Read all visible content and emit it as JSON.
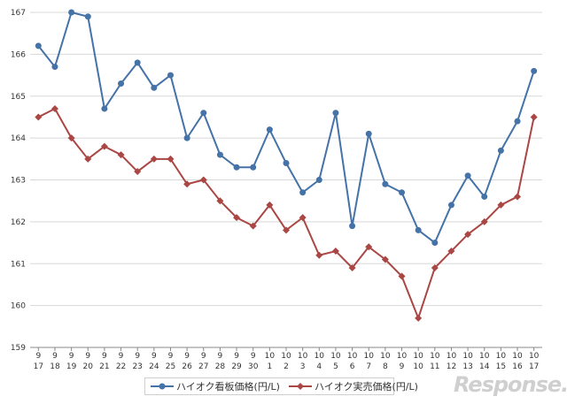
{
  "chart_data": {
    "type": "line",
    "categories": [
      [
        "9",
        "17"
      ],
      [
        "9",
        "18"
      ],
      [
        "9",
        "19"
      ],
      [
        "9",
        "20"
      ],
      [
        "9",
        "21"
      ],
      [
        "9",
        "22"
      ],
      [
        "9",
        "23"
      ],
      [
        "9",
        "24"
      ],
      [
        "9",
        "25"
      ],
      [
        "9",
        "26"
      ],
      [
        "9",
        "27"
      ],
      [
        "9",
        "28"
      ],
      [
        "9",
        "29"
      ],
      [
        "9",
        "30"
      ],
      [
        "10",
        "1"
      ],
      [
        "10",
        "2"
      ],
      [
        "10",
        "3"
      ],
      [
        "10",
        "4"
      ],
      [
        "10",
        "5"
      ],
      [
        "10",
        "6"
      ],
      [
        "10",
        "7"
      ],
      [
        "10",
        "8"
      ],
      [
        "10",
        "9"
      ],
      [
        "10",
        "10"
      ],
      [
        "10",
        "11"
      ],
      [
        "10",
        "12"
      ],
      [
        "10",
        "13"
      ],
      [
        "10",
        "14"
      ],
      [
        "10",
        "15"
      ],
      [
        "10",
        "16"
      ],
      [
        "10",
        "17"
      ]
    ],
    "ylim": [
      159,
      167
    ],
    "yticks": [
      "159",
      "160",
      "161",
      "162",
      "163",
      "164",
      "165",
      "166",
      "167"
    ],
    "grid": true,
    "legend_position": "bottom",
    "series": [
      {
        "name": "ハイオク看板価格(円/L)",
        "color": "#4572A7",
        "marker": "circle",
        "values": [
          166.2,
          165.7,
          167.0,
          166.9,
          164.7,
          165.3,
          165.8,
          165.2,
          165.5,
          164.0,
          164.6,
          163.6,
          163.3,
          163.3,
          164.2,
          163.4,
          162.7,
          163.0,
          164.6,
          161.9,
          164.1,
          162.9,
          162.7,
          161.8,
          161.5,
          162.4,
          163.1,
          162.6,
          163.7,
          164.4,
          165.6
        ]
      },
      {
        "name": "ハイオク実売価格(円/L)",
        "color": "#AA4643",
        "marker": "diamond",
        "values": [
          164.5,
          164.7,
          164.0,
          163.5,
          163.8,
          163.6,
          163.2,
          163.5,
          163.5,
          162.9,
          163.0,
          162.5,
          162.1,
          161.9,
          162.4,
          161.8,
          162.1,
          161.2,
          161.3,
          160.9,
          161.4,
          161.1,
          160.7,
          159.7,
          160.9,
          161.3,
          161.7,
          162.0,
          162.4,
          162.6,
          164.5
        ]
      }
    ]
  },
  "watermark": "Response."
}
